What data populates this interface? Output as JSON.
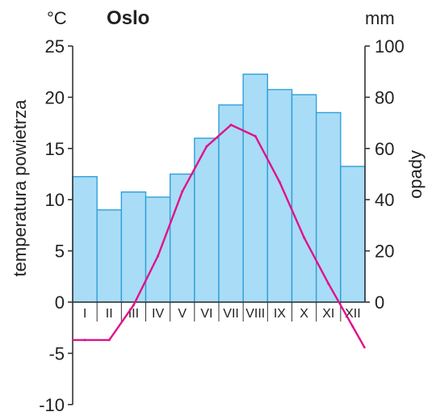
{
  "chart_data": {
    "type": "bar",
    "title": "Oslo",
    "categories": [
      "I",
      "II",
      "III",
      "IV",
      "V",
      "VI",
      "VII",
      "VIII",
      "IX",
      "X",
      "XI",
      "XII"
    ],
    "series": [
      {
        "name": "opady",
        "type": "bar",
        "axis": "right",
        "values": [
          49,
          36,
          43,
          41,
          50,
          64,
          77,
          89,
          83,
          81,
          74,
          53
        ]
      },
      {
        "name": "temperatura powietrza",
        "type": "line",
        "axis": "left",
        "values": [
          -3.7,
          -3.7,
          -0.3,
          4.5,
          10.8,
          15.2,
          17.3,
          16.2,
          11.7,
          6.3,
          1.8,
          -2.4
        ]
      }
    ],
    "y_left": {
      "label": "temperatura powietrza",
      "unit": "°C",
      "range": [
        -10,
        25
      ],
      "ticks": [
        25,
        20,
        15,
        10,
        5,
        0,
        -5,
        -10
      ]
    },
    "y_right": {
      "label": "opady",
      "unit": "mm",
      "range": [
        0,
        100
      ],
      "ticks": [
        100,
        80,
        60,
        40,
        20,
        0
      ]
    },
    "colors": {
      "bar_fill": "#a9dcf6",
      "bar_stroke": "#2f9fda",
      "line": "#e0128a",
      "axis": "#333333"
    },
    "grid": false,
    "legend": "none"
  }
}
